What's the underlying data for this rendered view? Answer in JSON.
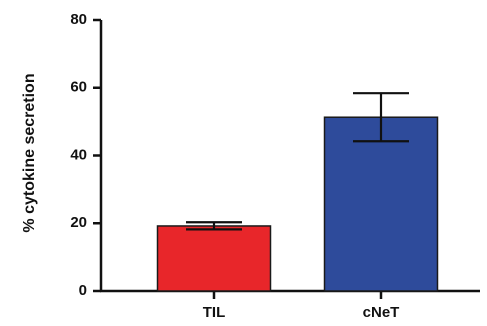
{
  "chart_data": {
    "type": "bar",
    "title": "",
    "xlabel": "",
    "ylabel": "% cytokine secretion",
    "ylim": [
      0,
      80
    ],
    "yticks": [
      "0",
      "20",
      "40",
      "60",
      "80"
    ],
    "grid": false,
    "categories": [
      "TIL",
      "cNeT"
    ],
    "values": [
      19.2,
      51.3
    ],
    "error_low": [
      18.2,
      44.2
    ],
    "error_high": [
      20.3,
      58.4
    ],
    "colors": [
      "#e8262a",
      "#2e4b9b"
    ]
  }
}
